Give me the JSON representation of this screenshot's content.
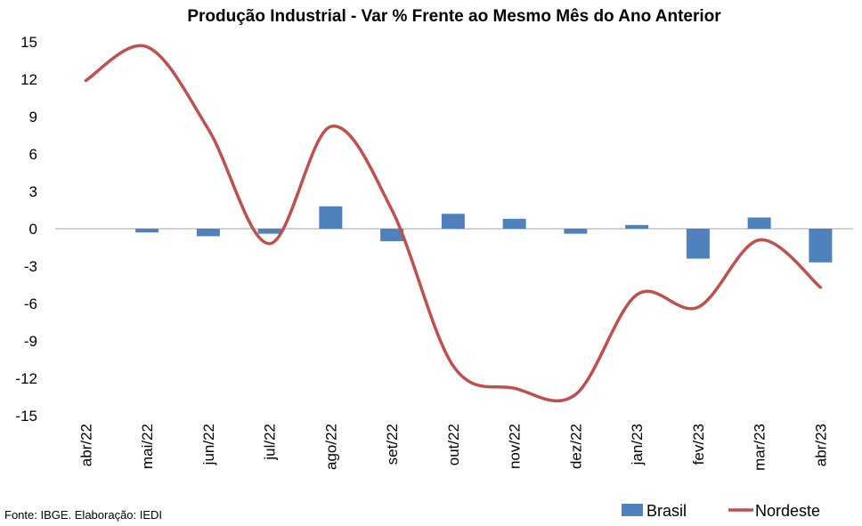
{
  "chart_data": {
    "type": "bar+line",
    "title": "Produção Industrial - Var % Frente ao Mesmo Mês do Ano Anterior",
    "categories": [
      "abr/22",
      "mai/22",
      "jun/22",
      "jul/22",
      "ago/22",
      "set/22",
      "out/22",
      "nov/22",
      "dez/22",
      "jan/23",
      "fev/23",
      "mar/23",
      "abr/23"
    ],
    "series": [
      {
        "name": "Brasil",
        "kind": "bar",
        "color": "#4f81bd",
        "values": [
          0.0,
          -0.3,
          -0.6,
          -0.4,
          1.8,
          -1.0,
          1.2,
          0.8,
          -0.4,
          0.3,
          -2.4,
          0.9,
          -2.7
        ]
      },
      {
        "name": "Nordeste",
        "kind": "line",
        "color": "#c0504d",
        "values": [
          11.9,
          14.6,
          8.0,
          -1.2,
          8.2,
          1.5,
          -11.0,
          -12.8,
          -13.3,
          -5.3,
          -6.3,
          -0.9,
          -4.7
        ]
      }
    ],
    "yticks": [
      15,
      12,
      9,
      6,
      3,
      0,
      -3,
      -6,
      -9,
      -12,
      -15
    ],
    "ylim": [
      -15,
      15
    ],
    "legend_position": "bottom-right",
    "grid": false
  },
  "legend": {
    "brasil": "Brasil",
    "nordeste": "Nordeste"
  },
  "source": "Fonte: IBGE. Elaboração: IEDI"
}
